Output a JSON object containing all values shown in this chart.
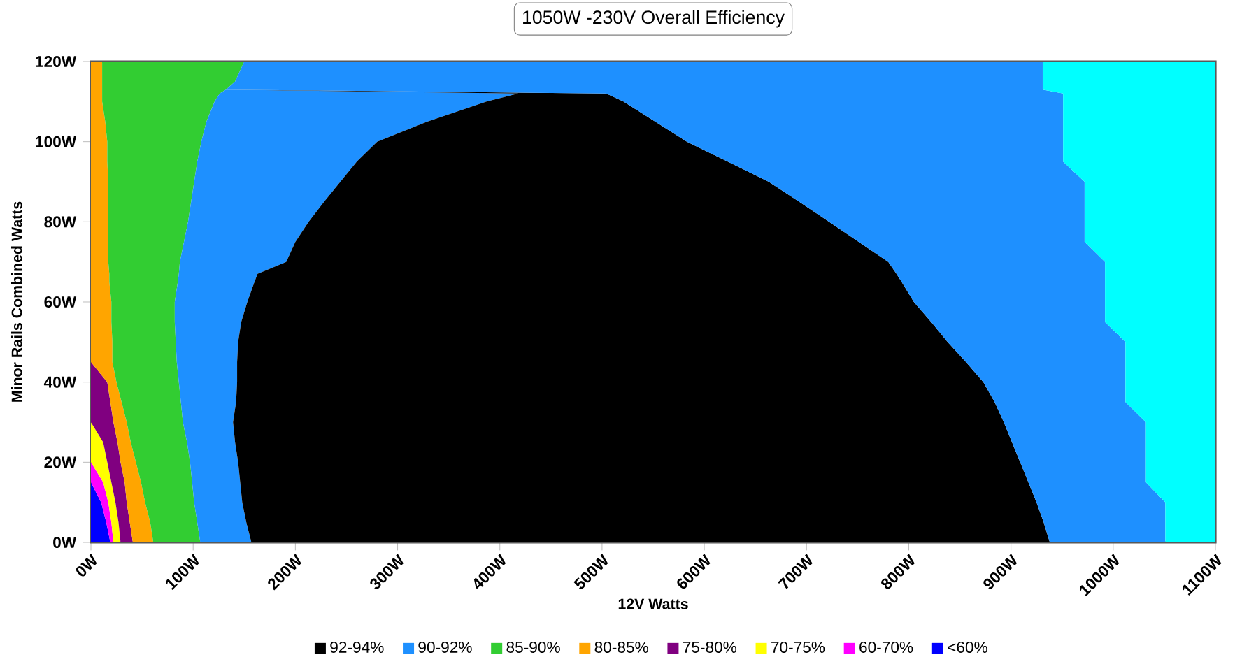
{
  "chart_data": {
    "type": "area",
    "title": "1050W -230V Overall Efficiency",
    "xlabel": "12V Watts",
    "ylabel": "Minor Rails Combined Watts",
    "orientation": "horizontal",
    "stacked": true,
    "legend": "bottom",
    "xlim": [
      0,
      1100
    ],
    "ylim": [
      0,
      120
    ],
    "xticks": [
      {
        "value": 0,
        "label": "0W"
      },
      {
        "value": 100,
        "label": "100W"
      },
      {
        "value": 200,
        "label": "200W"
      },
      {
        "value": 300,
        "label": "300W"
      },
      {
        "value": 400,
        "label": "400W"
      },
      {
        "value": 500,
        "label": "500W"
      },
      {
        "value": 600,
        "label": "600W"
      },
      {
        "value": 700,
        "label": "700W"
      },
      {
        "value": 800,
        "label": "800W"
      },
      {
        "value": 900,
        "label": "900W"
      },
      {
        "value": 1000,
        "label": "1000W"
      },
      {
        "value": 1100,
        "label": "1100W"
      }
    ],
    "yticks": [
      {
        "value": 0,
        "label": "0W"
      },
      {
        "value": 20,
        "label": "20W"
      },
      {
        "value": 40,
        "label": "40W"
      },
      {
        "value": 60,
        "label": "60W"
      },
      {
        "value": 80,
        "label": "80W"
      },
      {
        "value": 100,
        "label": "100W"
      },
      {
        "value": 120,
        "label": "120W"
      }
    ],
    "x": [
      0,
      5,
      10,
      15,
      20,
      25,
      30,
      35,
      40,
      45,
      50,
      55,
      60,
      65,
      67,
      70,
      75,
      80,
      85,
      90,
      95,
      100,
      105,
      110,
      112,
      113,
      115,
      120
    ],
    "series": [
      {
        "name": "<60%",
        "color": "#0000ff",
        "values": [
          19,
          15,
          10,
          0,
          0,
          0,
          0,
          0,
          0,
          0,
          0,
          0,
          0,
          0,
          0,
          0,
          0,
          0,
          0,
          0,
          0,
          0,
          0,
          0,
          0,
          0,
          0,
          0
        ]
      },
      {
        "name": "60-70%",
        "color": "#ff00ff",
        "values": [
          3,
          5,
          7,
          12,
          0,
          0,
          0,
          0,
          0,
          0,
          0,
          0,
          0,
          0,
          0,
          0,
          0,
          0,
          0,
          0,
          0,
          0,
          0,
          0,
          0,
          0,
          0,
          0
        ]
      },
      {
        "name": "70-75%",
        "color": "#ffff00",
        "values": [
          7,
          7,
          7,
          8,
          16,
          12,
          0,
          0,
          0,
          0,
          0,
          0,
          0,
          0,
          0,
          0,
          0,
          0,
          0,
          0,
          0,
          0,
          0,
          0,
          0,
          0,
          0,
          0
        ]
      },
      {
        "name": "75-80%",
        "color": "#800080",
        "values": [
          12,
          11,
          11,
          13,
          13,
          14,
          22,
          19,
          16,
          0,
          0,
          0,
          0,
          0,
          0,
          0,
          0,
          0,
          0,
          0,
          0,
          0,
          0,
          0,
          0,
          0,
          0,
          0
        ]
      },
      {
        "name": "80-85%",
        "color": "#ffa500",
        "values": [
          20,
          20,
          18,
          16,
          15,
          13,
          13,
          11,
          9,
          21,
          21,
          20,
          20,
          18,
          18,
          17,
          17,
          17,
          17,
          17,
          16,
          16,
          14,
          11,
          11,
          11,
          11,
          11
        ]
      },
      {
        "name": "85-90%",
        "color": "#32cd32",
        "values": [
          46,
          46,
          48,
          50,
          53,
          55,
          55,
          58,
          61,
          63,
          62,
          62,
          62,
          67,
          68,
          70,
          74,
          78,
          81,
          84,
          88,
          92,
          99,
          110,
          115,
          121,
          130,
          139
        ]
      },
      {
        "name": "90-92%",
        "color": "#1e90ff",
        "values": [
          50,
          48,
          47,
          47,
          47,
          47,
          49,
          54,
          57,
          59,
          61,
          65,
          71,
          75,
          77,
          104,
          109,
          118,
          130,
          143,
          156,
          172,
          216,
          266,
          292,
          0,
          0,
          0
        ]
      },
      {
        "name": "92-94%",
        "color": "#000000",
        "values": [
          781,
          780,
          777,
          771,
          765,
          760,
          754,
          742,
          730,
          713,
          694,
          675,
          652,
          633,
          625,
          589,
          551,
          509,
          465,
          419,
          363,
          303,
          223,
          134,
          86,
          0,
          0,
          0
        ]
      },
      {
        "color": "#1e90ff",
        "values": [
          113,
          119,
          126,
          115,
          123,
          131,
          139,
          128,
          139,
          156,
          174,
          170,
          187,
          199,
          204,
          212,
          221,
          250,
          279,
          309,
          328,
          368,
          399,
          430,
          447,
          799,
          790,
          781
        ]
      },
      {
        "color": "#00ffff",
        "values": [
          49,
          49,
          49,
          68,
          68,
          68,
          68,
          88,
          88,
          88,
          88,
          108,
          108,
          108,
          108,
          108,
          128,
          128,
          128,
          128,
          149,
          149,
          149,
          149,
          149,
          169,
          169,
          169
        ]
      }
    ]
  }
}
